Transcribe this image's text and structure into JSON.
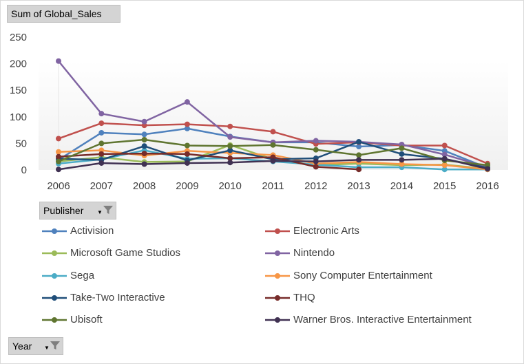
{
  "value_field": {
    "label": "Sum of Global_Sales"
  },
  "publisher_field": {
    "label": "Publisher"
  },
  "year_field": {
    "label": "Year"
  },
  "chart_data": {
    "type": "line",
    "title": "",
    "xlabel": "",
    "ylabel": "",
    "ylim": [
      0,
      250
    ],
    "yticks": [
      0,
      50,
      100,
      150,
      200,
      250
    ],
    "grid": false,
    "legend_position": "bottom",
    "categories": [
      "2006",
      "2007",
      "2008",
      "2009",
      "2010",
      "2011",
      "2012",
      "2013",
      "2014",
      "2015",
      "2016"
    ],
    "series": [
      {
        "name": "Activision",
        "color": "#4f81bd",
        "values": [
          19,
          70,
          67,
          78,
          63,
          52,
          52,
          44,
          47,
          36,
          4
        ]
      },
      {
        "name": "Electronic Arts",
        "color": "#c0504d",
        "values": [
          59,
          88,
          84,
          86,
          82,
          72,
          49,
          52,
          46,
          46,
          12
        ]
      },
      {
        "name": "Microsoft Game Studios",
        "color": "#9bbb59",
        "values": [
          16,
          24,
          15,
          16,
          47,
          20,
          9,
          12,
          9,
          10,
          2
        ]
      },
      {
        "name": "Nintendo",
        "color": "#8064a2",
        "values": [
          205,
          106,
          91,
          128,
          62,
          52,
          55,
          53,
          48,
          29,
          5
        ]
      },
      {
        "name": "Sega",
        "color": "#4bacc6",
        "values": [
          12,
          20,
          37,
          21,
          22,
          16,
          10,
          5,
          5,
          1,
          1
        ]
      },
      {
        "name": "Sony Computer Entertainment",
        "color": "#f79646",
        "values": [
          34,
          37,
          27,
          36,
          32,
          28,
          12,
          15,
          11,
          9,
          1
        ]
      },
      {
        "name": "Take-Two Interactive",
        "color": "#1f4e79",
        "values": [
          21,
          19,
          45,
          18,
          37,
          20,
          22,
          53,
          30,
          21,
          4
        ]
      },
      {
        "name": "THQ",
        "color": "#772c2a",
        "values": [
          25,
          30,
          31,
          30,
          22,
          24,
          6,
          1,
          null,
          null,
          null
        ]
      },
      {
        "name": "Ubisoft",
        "color": "#5f7530",
        "values": [
          16,
          50,
          57,
          46,
          45,
          47,
          38,
          28,
          41,
          18,
          9
        ]
      },
      {
        "name": "Warner Bros. Interactive Entertainment",
        "color": "#403152",
        "values": [
          1,
          13,
          11,
          13,
          14,
          17,
          16,
          19,
          19,
          21,
          2
        ]
      }
    ]
  }
}
